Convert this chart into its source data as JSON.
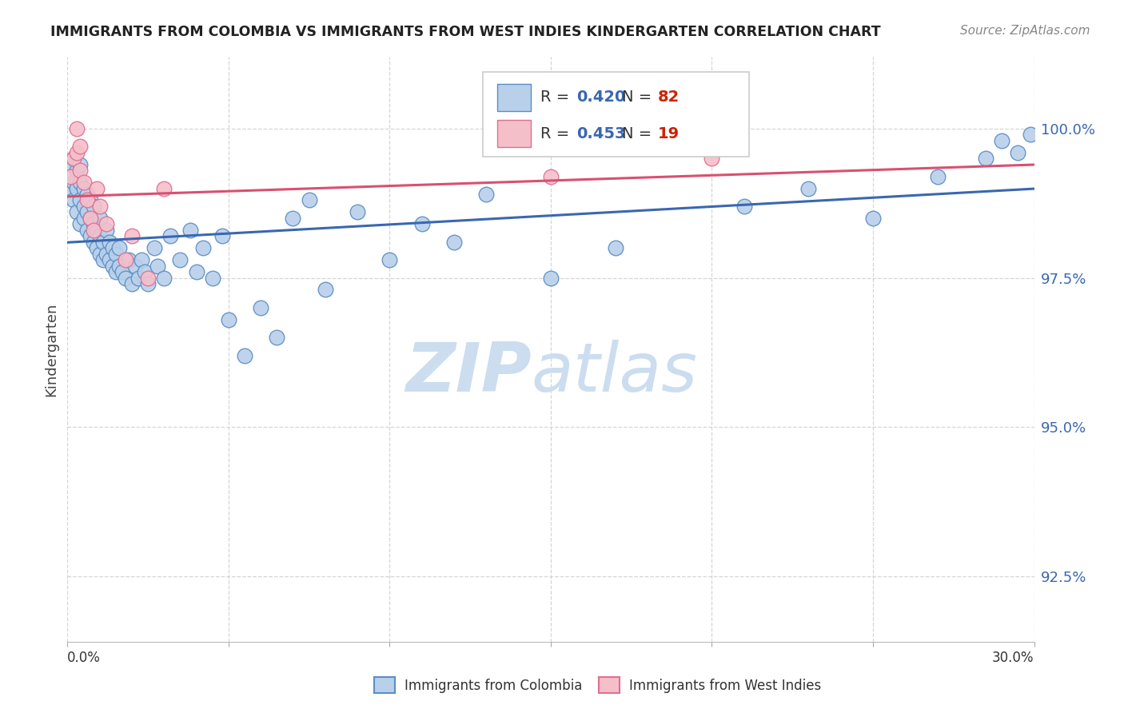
{
  "title": "IMMIGRANTS FROM COLOMBIA VS IMMIGRANTS FROM WEST INDIES KINDERGARTEN CORRELATION CHART",
  "source": "Source: ZipAtlas.com",
  "ylabel": "Kindergarten",
  "yticks": [
    92.5,
    95.0,
    97.5,
    100.0
  ],
  "ytick_labels": [
    "92.5%",
    "95.0%",
    "97.5%",
    "100.0%"
  ],
  "xticks": [
    0.0,
    0.05,
    0.1,
    0.15,
    0.2,
    0.25,
    0.3
  ],
  "xmin": 0.0,
  "xmax": 0.3,
  "ymin": 91.4,
  "ymax": 101.2,
  "colombia_R": 0.42,
  "colombia_N": 82,
  "westindies_R": 0.453,
  "westindies_N": 19,
  "colombia_color": "#b8d0ea",
  "colombia_edge_color": "#5b8ec4",
  "colombia_line_color": "#3a67b0",
  "westindies_color": "#f5bfca",
  "westindies_edge_color": "#e07090",
  "westindies_line_color": "#d95070",
  "colombia_x": [
    0.001,
    0.001,
    0.002,
    0.002,
    0.002,
    0.003,
    0.003,
    0.003,
    0.004,
    0.004,
    0.004,
    0.004,
    0.005,
    0.005,
    0.005,
    0.006,
    0.006,
    0.006,
    0.007,
    0.007,
    0.007,
    0.008,
    0.008,
    0.008,
    0.009,
    0.009,
    0.01,
    0.01,
    0.01,
    0.011,
    0.011,
    0.012,
    0.012,
    0.013,
    0.013,
    0.014,
    0.014,
    0.015,
    0.015,
    0.016,
    0.016,
    0.017,
    0.018,
    0.019,
    0.02,
    0.021,
    0.022,
    0.023,
    0.024,
    0.025,
    0.027,
    0.028,
    0.03,
    0.032,
    0.035,
    0.038,
    0.04,
    0.042,
    0.045,
    0.048,
    0.05,
    0.055,
    0.06,
    0.065,
    0.07,
    0.075,
    0.08,
    0.09,
    0.1,
    0.11,
    0.12,
    0.13,
    0.15,
    0.17,
    0.21,
    0.23,
    0.25,
    0.27,
    0.285,
    0.29,
    0.295,
    0.299
  ],
  "colombia_y": [
    99.0,
    99.4,
    98.8,
    99.1,
    99.5,
    98.6,
    99.0,
    99.3,
    98.4,
    98.8,
    99.1,
    99.4,
    98.5,
    98.7,
    99.0,
    98.3,
    98.6,
    98.9,
    98.2,
    98.5,
    98.8,
    98.1,
    98.4,
    98.7,
    98.0,
    98.3,
    97.9,
    98.2,
    98.5,
    97.8,
    98.1,
    97.9,
    98.3,
    97.8,
    98.1,
    97.7,
    98.0,
    97.6,
    97.9,
    97.7,
    98.0,
    97.6,
    97.5,
    97.8,
    97.4,
    97.7,
    97.5,
    97.8,
    97.6,
    97.4,
    98.0,
    97.7,
    97.5,
    98.2,
    97.8,
    98.3,
    97.6,
    98.0,
    97.5,
    98.2,
    96.8,
    96.2,
    97.0,
    96.5,
    98.5,
    98.8,
    97.3,
    98.6,
    97.8,
    98.4,
    98.1,
    98.9,
    97.5,
    98.0,
    98.7,
    99.0,
    98.5,
    99.2,
    99.5,
    99.8,
    99.6,
    99.9
  ],
  "westindies_x": [
    0.001,
    0.002,
    0.003,
    0.003,
    0.004,
    0.004,
    0.005,
    0.006,
    0.007,
    0.008,
    0.009,
    0.01,
    0.012,
    0.018,
    0.02,
    0.025,
    0.03,
    0.15,
    0.2
  ],
  "westindies_y": [
    99.2,
    99.5,
    99.6,
    100.0,
    99.3,
    99.7,
    99.1,
    98.8,
    98.5,
    98.3,
    99.0,
    98.7,
    98.4,
    97.8,
    98.2,
    97.5,
    99.0,
    99.2,
    99.5
  ],
  "watermark_zip": "ZIP",
  "watermark_atlas": "atlas",
  "watermark_color": "#ccddf0",
  "legend_r_color": "#3a67b0",
  "legend_n_color": "#cc2200",
  "background_color": "#ffffff",
  "grid_color": "#cccccc",
  "ytick_color": "#3a67b0"
}
